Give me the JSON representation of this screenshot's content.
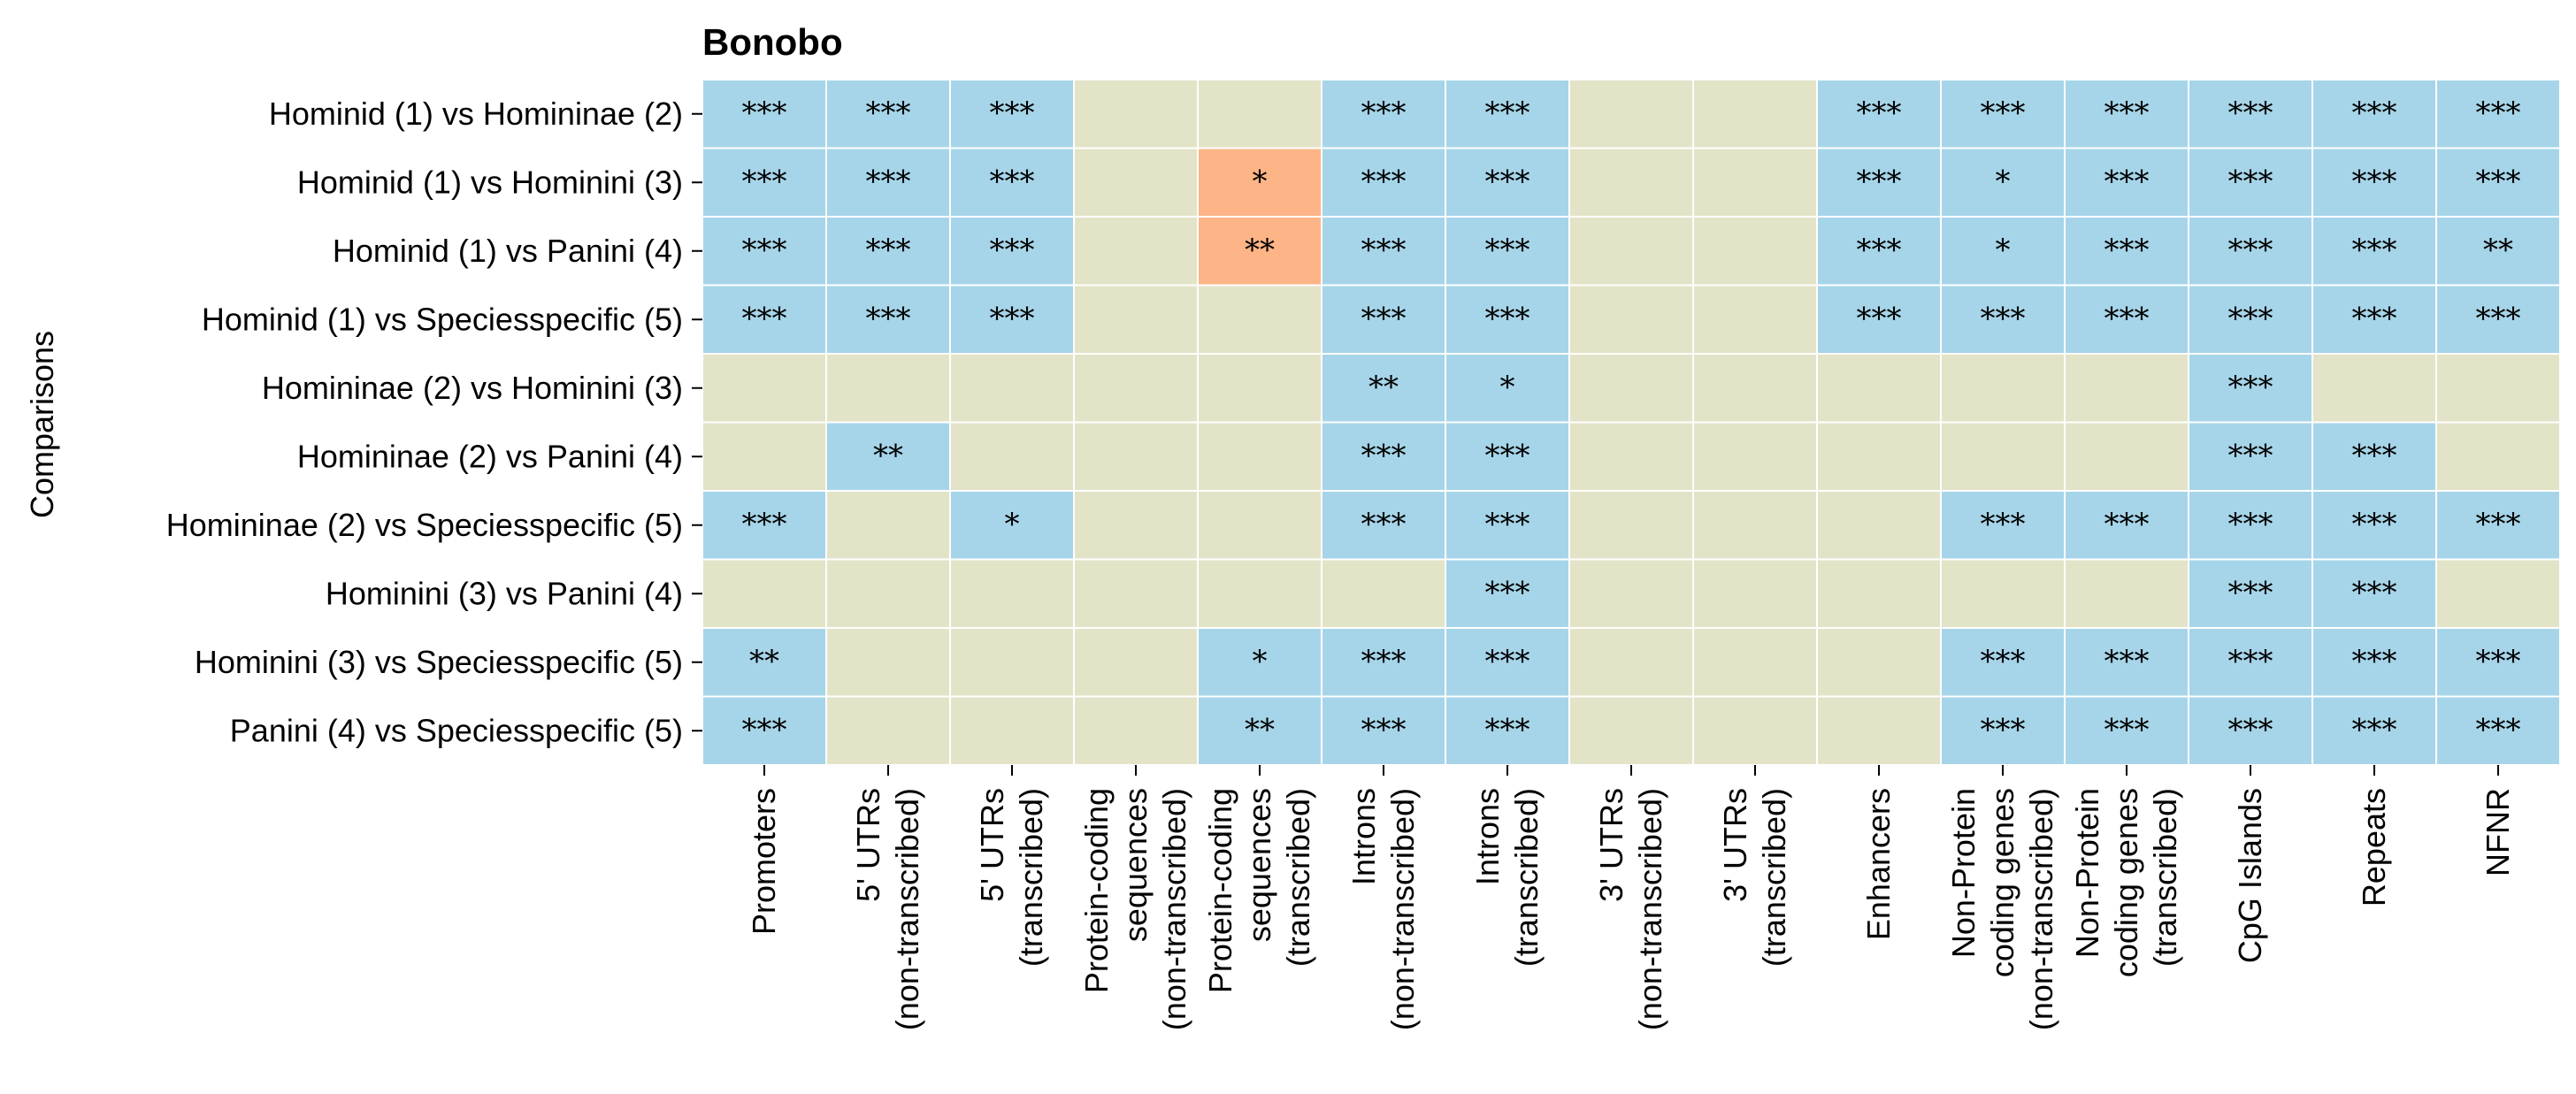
{
  "chart_data": {
    "type": "heatmap",
    "title": "Bonobo",
    "ylabel": "Comparisons",
    "xlabel": "",
    "rows": [
      "Hominid (1) vs Homininae (2)",
      "Hominid (1) vs Hominini (3)",
      "Hominid (1) vs Panini (4)",
      "Hominid (1) vs Speciesspecific (5)",
      "Homininae (2) vs Hominini (3)",
      "Homininae (2) vs Panini (4)",
      "Homininae (2) vs Speciesspecific (5)",
      "Hominini (3) vs Panini (4)",
      "Hominini (3) vs Speciesspecific (5)",
      "Panini (4) vs Speciesspecific (5)"
    ],
    "columns": [
      [
        "Promoters"
      ],
      [
        "5' UTRs",
        "(non-transcribed)"
      ],
      [
        "5' UTRs",
        "(transcribed)"
      ],
      [
        "Protein-coding",
        "sequences",
        "(non-transcribed)"
      ],
      [
        "Protein-coding",
        "sequences",
        "(transcribed)"
      ],
      [
        "Introns",
        "(non-transcribed)"
      ],
      [
        "Introns",
        "(transcribed)"
      ],
      [
        "3' UTRs",
        "(non-transcribed)"
      ],
      [
        "3' UTRs",
        "(transcribed)"
      ],
      [
        "Enhancers"
      ],
      [
        "Non-Protein",
        "coding genes",
        "(non-transcribed)"
      ],
      [
        "Non-Protein",
        "coding genes",
        "(transcribed)"
      ],
      [
        "CpG Islands"
      ],
      [
        "Repeats"
      ],
      [
        "NFNR"
      ]
    ],
    "cells": [
      [
        [
          "b",
          "***"
        ],
        [
          "b",
          "***"
        ],
        [
          "b",
          "***"
        ],
        [
          "n",
          ""
        ],
        [
          "n",
          ""
        ],
        [
          "b",
          "***"
        ],
        [
          "b",
          "***"
        ],
        [
          "n",
          ""
        ],
        [
          "n",
          ""
        ],
        [
          "b",
          "***"
        ],
        [
          "b",
          "***"
        ],
        [
          "b",
          "***"
        ],
        [
          "b",
          "***"
        ],
        [
          "b",
          "***"
        ],
        [
          "b",
          "***"
        ]
      ],
      [
        [
          "b",
          "***"
        ],
        [
          "b",
          "***"
        ],
        [
          "b",
          "***"
        ],
        [
          "n",
          ""
        ],
        [
          "o",
          "*"
        ],
        [
          "b",
          "***"
        ],
        [
          "b",
          "***"
        ],
        [
          "n",
          ""
        ],
        [
          "n",
          ""
        ],
        [
          "b",
          "***"
        ],
        [
          "b",
          "*"
        ],
        [
          "b",
          "***"
        ],
        [
          "b",
          "***"
        ],
        [
          "b",
          "***"
        ],
        [
          "b",
          "***"
        ]
      ],
      [
        [
          "b",
          "***"
        ],
        [
          "b",
          "***"
        ],
        [
          "b",
          "***"
        ],
        [
          "n",
          ""
        ],
        [
          "o",
          "**"
        ],
        [
          "b",
          "***"
        ],
        [
          "b",
          "***"
        ],
        [
          "n",
          ""
        ],
        [
          "n",
          ""
        ],
        [
          "b",
          "***"
        ],
        [
          "b",
          "*"
        ],
        [
          "b",
          "***"
        ],
        [
          "b",
          "***"
        ],
        [
          "b",
          "***"
        ],
        [
          "b",
          "**"
        ]
      ],
      [
        [
          "b",
          "***"
        ],
        [
          "b",
          "***"
        ],
        [
          "b",
          "***"
        ],
        [
          "n",
          ""
        ],
        [
          "n",
          ""
        ],
        [
          "b",
          "***"
        ],
        [
          "b",
          "***"
        ],
        [
          "n",
          ""
        ],
        [
          "n",
          ""
        ],
        [
          "b",
          "***"
        ],
        [
          "b",
          "***"
        ],
        [
          "b",
          "***"
        ],
        [
          "b",
          "***"
        ],
        [
          "b",
          "***"
        ],
        [
          "b",
          "***"
        ]
      ],
      [
        [
          "n",
          ""
        ],
        [
          "n",
          ""
        ],
        [
          "n",
          ""
        ],
        [
          "n",
          ""
        ],
        [
          "n",
          ""
        ],
        [
          "b",
          "**"
        ],
        [
          "b",
          "*"
        ],
        [
          "n",
          ""
        ],
        [
          "n",
          ""
        ],
        [
          "n",
          ""
        ],
        [
          "n",
          ""
        ],
        [
          "n",
          ""
        ],
        [
          "b",
          "***"
        ],
        [
          "n",
          ""
        ],
        [
          "n",
          ""
        ]
      ],
      [
        [
          "n",
          ""
        ],
        [
          "b",
          "**"
        ],
        [
          "n",
          ""
        ],
        [
          "n",
          ""
        ],
        [
          "n",
          ""
        ],
        [
          "b",
          "***"
        ],
        [
          "b",
          "***"
        ],
        [
          "n",
          ""
        ],
        [
          "n",
          ""
        ],
        [
          "n",
          ""
        ],
        [
          "n",
          ""
        ],
        [
          "n",
          ""
        ],
        [
          "b",
          "***"
        ],
        [
          "b",
          "***"
        ],
        [
          "n",
          ""
        ]
      ],
      [
        [
          "b",
          "***"
        ],
        [
          "n",
          ""
        ],
        [
          "b",
          "*"
        ],
        [
          "n",
          ""
        ],
        [
          "n",
          ""
        ],
        [
          "b",
          "***"
        ],
        [
          "b",
          "***"
        ],
        [
          "n",
          ""
        ],
        [
          "n",
          ""
        ],
        [
          "n",
          ""
        ],
        [
          "b",
          "***"
        ],
        [
          "b",
          "***"
        ],
        [
          "b",
          "***"
        ],
        [
          "b",
          "***"
        ],
        [
          "b",
          "***"
        ]
      ],
      [
        [
          "n",
          ""
        ],
        [
          "n",
          ""
        ],
        [
          "n",
          ""
        ],
        [
          "n",
          ""
        ],
        [
          "n",
          ""
        ],
        [
          "n",
          ""
        ],
        [
          "b",
          "***"
        ],
        [
          "n",
          ""
        ],
        [
          "n",
          ""
        ],
        [
          "n",
          ""
        ],
        [
          "n",
          ""
        ],
        [
          "n",
          ""
        ],
        [
          "b",
          "***"
        ],
        [
          "b",
          "***"
        ],
        [
          "n",
          ""
        ]
      ],
      [
        [
          "b",
          "**"
        ],
        [
          "n",
          ""
        ],
        [
          "n",
          ""
        ],
        [
          "n",
          ""
        ],
        [
          "b",
          "*"
        ],
        [
          "b",
          "***"
        ],
        [
          "b",
          "***"
        ],
        [
          "n",
          ""
        ],
        [
          "n",
          ""
        ],
        [
          "n",
          ""
        ],
        [
          "b",
          "***"
        ],
        [
          "b",
          "***"
        ],
        [
          "b",
          "***"
        ],
        [
          "b",
          "***"
        ],
        [
          "b",
          "***"
        ]
      ],
      [
        [
          "b",
          "***"
        ],
        [
          "n",
          ""
        ],
        [
          "n",
          ""
        ],
        [
          "n",
          ""
        ],
        [
          "b",
          "**"
        ],
        [
          "b",
          "***"
        ],
        [
          "b",
          "***"
        ],
        [
          "n",
          ""
        ],
        [
          "n",
          ""
        ],
        [
          "n",
          ""
        ],
        [
          "b",
          "***"
        ],
        [
          "b",
          "***"
        ],
        [
          "b",
          "***"
        ],
        [
          "b",
          "***"
        ],
        [
          "b",
          "***"
        ]
      ]
    ],
    "colors": {
      "b": "#a6d5e9",
      "o": "#fdb486",
      "n": "#e3e3c8",
      "grid": "#ffffff"
    },
    "legend": "none"
  }
}
